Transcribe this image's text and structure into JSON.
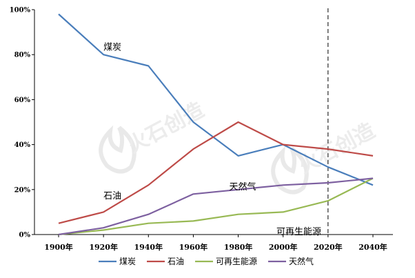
{
  "chart_data": {
    "type": "line",
    "title": "",
    "xlabel": "",
    "ylabel": "",
    "categories": [
      "1900年",
      "1920年",
      "1940年",
      "1960年",
      "1980年",
      "2000年",
      "2020年",
      "2040年"
    ],
    "x": [
      1900,
      1920,
      1940,
      1960,
      1980,
      2000,
      2020,
      2040
    ],
    "ylim": [
      0,
      100
    ],
    "yticks": [
      "0%",
      "20%",
      "40%",
      "60%",
      "80%",
      "100%"
    ],
    "grid": false,
    "legend_position": "bottom",
    "series": [
      {
        "name": "煤炭",
        "color": "#4a7ebb",
        "values": [
          98,
          80,
          75,
          50,
          35,
          40,
          30,
          22
        ]
      },
      {
        "name": "石油",
        "color": "#be4b48",
        "values": [
          5,
          10,
          22,
          38,
          50,
          40,
          38,
          35
        ]
      },
      {
        "name": "可再生能源",
        "color": "#98b954",
        "values": [
          0,
          2,
          5,
          6,
          9,
          10,
          15,
          25
        ]
      },
      {
        "name": "天然气",
        "color": "#7d60a0",
        "values": [
          0,
          3,
          9,
          18,
          20,
          22,
          23,
          25
        ]
      }
    ],
    "reference_line": {
      "x": 2020,
      "style": "dashed"
    },
    "annotations": [
      {
        "text": "煤炭",
        "x": 1920,
        "y": 82
      },
      {
        "text": "石油",
        "x": 1920,
        "y": 16
      },
      {
        "text": "天然气",
        "x": 1976,
        "y": 20
      },
      {
        "text": "可再生能源",
        "x": 1997,
        "y": 0
      }
    ]
  },
  "watermark": {
    "text": "火石创造"
  }
}
